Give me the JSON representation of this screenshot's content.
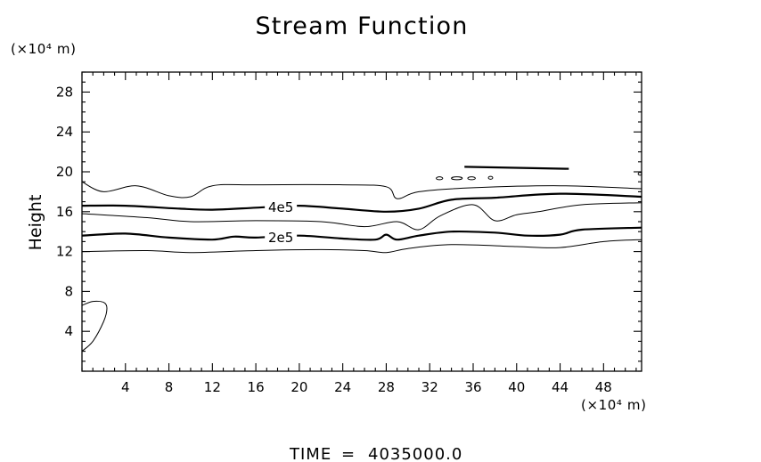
{
  "chart_data": {
    "type": "contour",
    "title": "Stream Function",
    "ylabel": "Height",
    "xlabel": "",
    "y_unit": "(×10⁴ m)",
    "x_unit": "(×10⁴ m)",
    "xlim": [
      0,
      51.5
    ],
    "ylim": [
      0,
      30
    ],
    "xticks": [
      4,
      8,
      12,
      16,
      20,
      24,
      28,
      32,
      36,
      40,
      44,
      48
    ],
    "yticks": [
      4,
      8,
      12,
      16,
      20,
      24,
      28
    ],
    "contour_labels": [
      {
        "text": "4e5",
        "x": 18.3,
        "y": 16.5
      },
      {
        "text": "2e5",
        "x": 18.3,
        "y": 13.5
      }
    ],
    "contours": [
      {
        "kind": "thick",
        "labeled": "4e5",
        "points": [
          [
            0,
            16.6
          ],
          [
            4,
            16.6
          ],
          [
            9,
            16.3
          ],
          [
            12,
            16.2
          ],
          [
            16,
            16.4
          ],
          [
            20,
            16.6
          ],
          [
            24,
            16.3
          ],
          [
            28,
            16.0
          ],
          [
            31,
            16.3
          ],
          [
            34,
            17.2
          ],
          [
            38,
            17.4
          ],
          [
            44,
            17.8
          ],
          [
            51.5,
            17.5
          ]
        ]
      },
      {
        "kind": "thick",
        "labeled": "2e5",
        "points": [
          [
            0,
            13.6
          ],
          [
            4,
            13.8
          ],
          [
            8,
            13.4
          ],
          [
            12,
            13.2
          ],
          [
            14,
            13.5
          ],
          [
            16,
            13.4
          ],
          [
            20,
            13.6
          ],
          [
            24,
            13.3
          ],
          [
            27,
            13.2
          ],
          [
            28,
            13.7
          ],
          [
            29,
            13.2
          ],
          [
            31,
            13.6
          ],
          [
            34,
            14.0
          ],
          [
            38,
            13.9
          ],
          [
            41,
            13.6
          ],
          [
            44,
            13.7
          ],
          [
            46,
            14.2
          ],
          [
            51.5,
            14.4
          ]
        ]
      },
      {
        "kind": "thin",
        "points": [
          [
            0,
            19.0
          ],
          [
            2,
            18.0
          ],
          [
            5,
            18.6
          ],
          [
            8,
            17.6
          ],
          [
            10,
            17.5
          ],
          [
            12,
            18.6
          ],
          [
            16,
            18.7
          ],
          [
            24,
            18.7
          ],
          [
            28,
            18.5
          ],
          [
            29,
            17.3
          ],
          [
            31,
            18.0
          ],
          [
            36,
            18.4
          ],
          [
            44,
            18.6
          ],
          [
            51.5,
            18.3
          ]
        ]
      },
      {
        "kind": "thin",
        "points": [
          [
            0,
            15.8
          ],
          [
            6,
            15.4
          ],
          [
            10,
            15.0
          ],
          [
            16,
            15.1
          ],
          [
            22,
            15.0
          ],
          [
            26,
            14.5
          ],
          [
            29,
            15.0
          ],
          [
            31,
            14.2
          ],
          [
            33,
            15.6
          ],
          [
            36,
            16.7
          ],
          [
            38,
            15.1
          ],
          [
            40,
            15.7
          ],
          [
            42,
            16.0
          ],
          [
            46,
            16.7
          ],
          [
            51.5,
            16.9
          ]
        ]
      },
      {
        "kind": "thin",
        "points": [
          [
            0,
            12.0
          ],
          [
            6,
            12.1
          ],
          [
            10,
            11.9
          ],
          [
            16,
            12.1
          ],
          [
            22,
            12.2
          ],
          [
            26,
            12.1
          ],
          [
            28,
            11.9
          ],
          [
            30,
            12.3
          ],
          [
            34,
            12.7
          ],
          [
            40,
            12.5
          ],
          [
            44,
            12.4
          ],
          [
            48,
            13.0
          ],
          [
            51.5,
            13.2
          ]
        ]
      },
      {
        "kind": "thin",
        "points": [
          [
            0,
            2.0
          ],
          [
            1,
            3.0
          ],
          [
            2,
            5.0
          ],
          [
            2.3,
            6.3
          ],
          [
            2.0,
            6.9
          ],
          [
            1.0,
            7.0
          ],
          [
            0,
            6.6
          ]
        ]
      },
      {
        "kind": "thick",
        "points": [
          [
            35.2,
            20.5
          ],
          [
            44.8,
            20.3
          ]
        ]
      },
      {
        "kind": "thin",
        "points": [
          [
            37.2,
            20.45
          ],
          [
            39.5,
            20.4
          ]
        ]
      },
      {
        "kind": "blob",
        "points": [
          [
            32.6,
            19.3
          ],
          [
            33.2,
            19.4
          ]
        ]
      },
      {
        "kind": "blob",
        "points": [
          [
            34.0,
            19.4
          ],
          [
            35.0,
            19.3
          ]
        ]
      },
      {
        "kind": "blob",
        "points": [
          [
            35.5,
            19.35
          ],
          [
            36.2,
            19.35
          ]
        ]
      },
      {
        "kind": "blob",
        "points": [
          [
            37.4,
            19.4
          ],
          [
            37.8,
            19.4
          ]
        ]
      },
      {
        "kind": "blob",
        "points": [
          [
            51.2,
            19.8
          ],
          [
            51.5,
            19.8
          ]
        ]
      }
    ]
  },
  "footer": {
    "time_label": "TIME",
    "equals": "=",
    "time_value": "4035000.0"
  }
}
